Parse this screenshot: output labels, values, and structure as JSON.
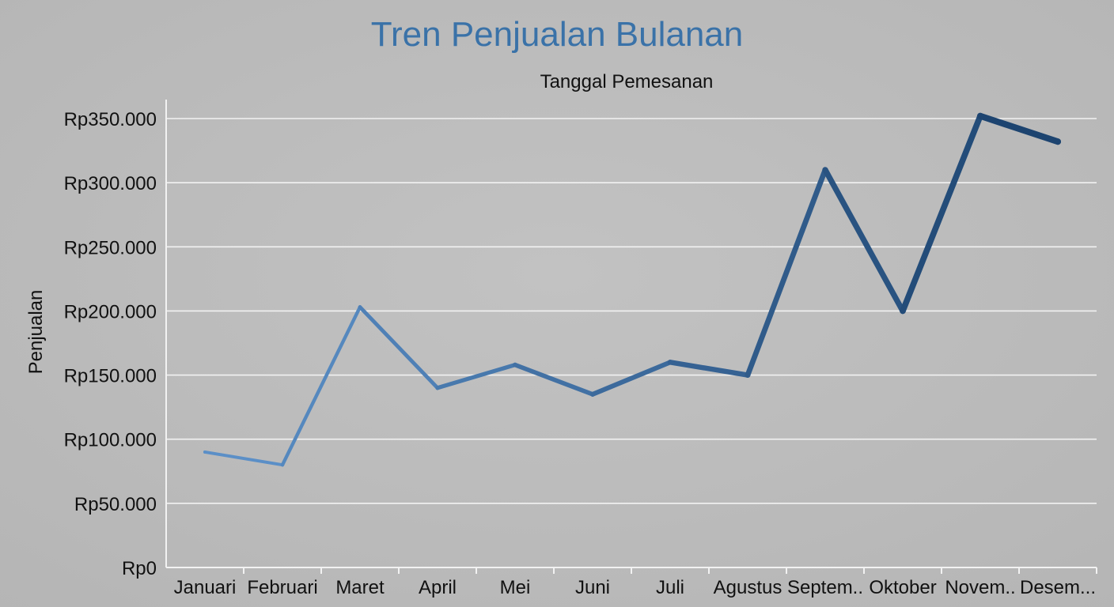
{
  "chart_data": {
    "type": "line",
    "title": "Tren Penjualan Bulanan",
    "subtitle": "Tanggal Pemesanan",
    "xlabel": "",
    "ylabel": "Penjualan",
    "categories": [
      "Januari",
      "Februari",
      "Maret",
      "April",
      "Mei",
      "Juni",
      "Juli",
      "Agustus",
      "Septem..",
      "Oktober",
      "Novem..",
      "Desem..."
    ],
    "values": [
      90000,
      80000,
      203000,
      140000,
      158000,
      135000,
      160000,
      150000,
      310000,
      200000,
      352000,
      332000
    ],
    "yticks": [
      {
        "value": 0,
        "label": "Rp0"
      },
      {
        "value": 50000,
        "label": "Rp50.000"
      },
      {
        "value": 100000,
        "label": "Rp100.000"
      },
      {
        "value": 150000,
        "label": "Rp150.000"
      },
      {
        "value": 200000,
        "label": "Rp200.000"
      },
      {
        "value": 250000,
        "label": "Rp250.000"
      },
      {
        "value": 300000,
        "label": "Rp300.000"
      },
      {
        "value": 350000,
        "label": "Rp350.000"
      }
    ],
    "ylim": [
      0,
      350000
    ],
    "grid": true,
    "legend": "none",
    "colors": {
      "title": "#3a72a8",
      "line_start": "#5b8fc7",
      "line_end": "#1d4470",
      "grid": "#f2f2f2",
      "axis": "#f2f2f2",
      "text": "#111111"
    }
  }
}
